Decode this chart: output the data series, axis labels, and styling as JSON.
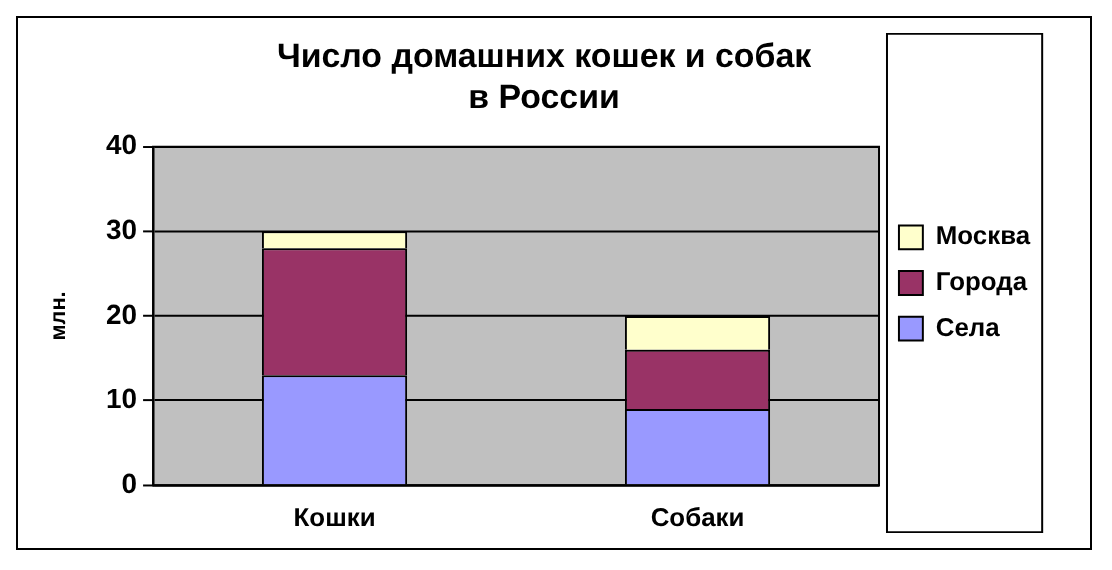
{
  "chart_data": {
    "type": "bar",
    "title": "Число домашних кошек и собак в России",
    "ylabel": "млн.",
    "categories": [
      "Кошки",
      "Собаки"
    ],
    "series": [
      {
        "name": "Села",
        "color": "#9999ff",
        "values": [
          13,
          9
        ]
      },
      {
        "name": "Города",
        "color": "#993366",
        "values": [
          15,
          7
        ]
      },
      {
        "name": "Москва",
        "color": "#ffffcc",
        "values": [
          2,
          4
        ]
      }
    ],
    "stacked": true,
    "ylim": [
      0,
      40
    ],
    "yticks": [
      0,
      10,
      20,
      30,
      40
    ],
    "grid": "y",
    "legend": "right"
  }
}
